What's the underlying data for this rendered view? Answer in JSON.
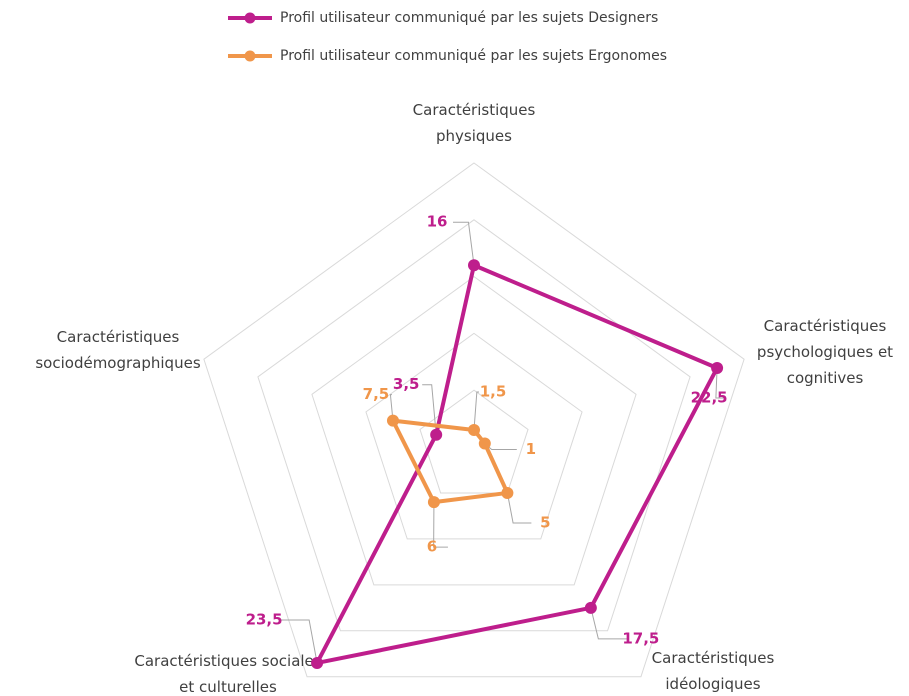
{
  "chart_data": {
    "type": "radar",
    "categories": [
      "Caractéristiques\nphysiques",
      "Caractéristiques\npsychologiques et\ncognitives",
      "Caractéristiques\nidéologiques",
      "Caractéristiques sociales\net culturelles",
      "Caractéristiques\nsociodémographiques"
    ],
    "series": [
      {
        "name": "Profil utilisateur communiqué par les sujets Designers",
        "color": "#be1e8c",
        "values": [
          16,
          22.5,
          17.5,
          23.5,
          3.5
        ],
        "value_labels": [
          "16",
          "22,5",
          "17,5",
          "23,5",
          "3,5"
        ]
      },
      {
        "name": "Profil utilisateur communiqué par les sujets Ergonomes",
        "color": "#f0964a",
        "values": [
          1.5,
          1,
          5,
          6,
          7.5
        ],
        "value_labels": [
          "1,5",
          "1",
          "5",
          "6",
          "7,5"
        ]
      }
    ],
    "rlim": [
      0,
      25
    ],
    "rticks": [
      0,
      5,
      10,
      15,
      20,
      25
    ],
    "grid": true,
    "legend": "top"
  }
}
